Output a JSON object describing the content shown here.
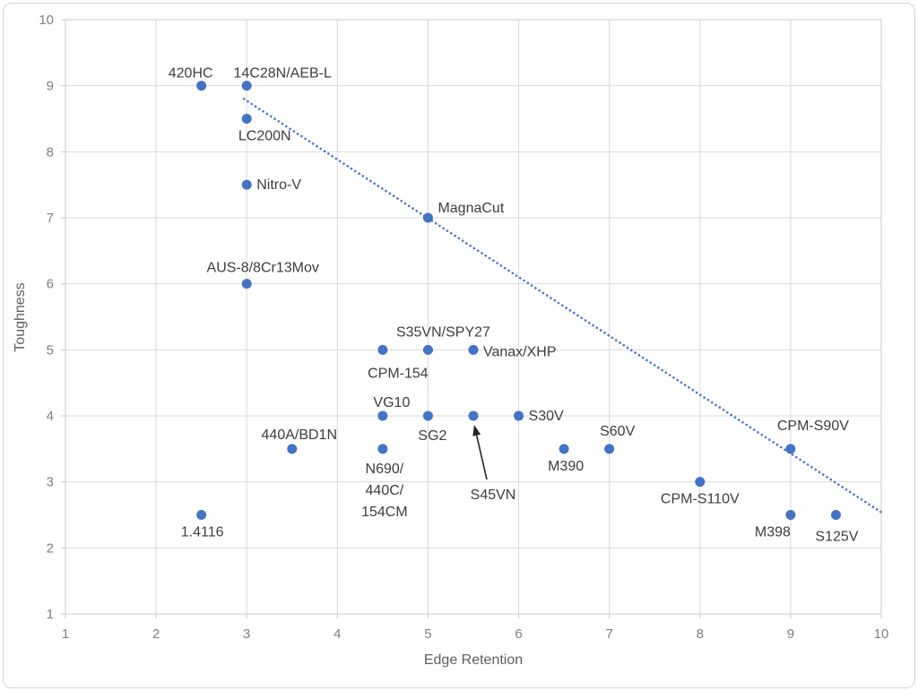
{
  "chart_data": {
    "type": "scatter",
    "title": "",
    "xlabel": "Edge Retention",
    "ylabel": "Toughness",
    "xlim": [
      1,
      10
    ],
    "ylim": [
      1,
      10
    ],
    "xticks": [
      "1",
      "2",
      "3",
      "4",
      "5",
      "6",
      "7",
      "8",
      "9",
      "10"
    ],
    "yticks": [
      "1",
      "2",
      "3",
      "4",
      "5",
      "6",
      "7",
      "8",
      "9",
      "10"
    ],
    "grid": true,
    "legend": false,
    "points": [
      {
        "label": "420HC",
        "x": 2.5,
        "y": 9,
        "placement": "above",
        "offset": [
          -12,
          4
        ]
      },
      {
        "label": "14C28N/AEB-L",
        "x": 3,
        "y": 9,
        "placement": "above",
        "offset": [
          40,
          4
        ]
      },
      {
        "label": "LC200N",
        "x": 3,
        "y": 8.5,
        "placement": "below",
        "offset": [
          20,
          0
        ]
      },
      {
        "label": "Nitro-V",
        "x": 3,
        "y": 7.5,
        "placement": "right",
        "offset": [
          0,
          0
        ]
      },
      {
        "label": "MagnaCut",
        "x": 5,
        "y": 7,
        "placement": "above-right",
        "offset": [
          0,
          0
        ]
      },
      {
        "label": "AUS-8/8Cr13Mov",
        "x": 3,
        "y": 6,
        "placement": "above",
        "offset": [
          18,
          0
        ]
      },
      {
        "label": "CPM-154",
        "x": 4.5,
        "y": 5,
        "placement": "below",
        "offset": [
          17,
          7
        ]
      },
      {
        "label": "S35VN/SPY27",
        "x": 5,
        "y": 5,
        "placement": "above",
        "offset": [
          17,
          -2
        ]
      },
      {
        "label": "Vanax/XHP",
        "x": 5.5,
        "y": 5,
        "placement": "right",
        "offset": [
          0,
          2
        ]
      },
      {
        "label": "VG10",
        "x": 4.5,
        "y": 4,
        "placement": "above",
        "offset": [
          10,
          3
        ]
      },
      {
        "label": "SG2",
        "x": 5,
        "y": 4,
        "placement": "below",
        "offset": [
          5,
          3
        ]
      },
      {
        "label": "S45VN",
        "x": 5.5,
        "y": 4,
        "placement": "below",
        "offset": [
          22,
          69
        ],
        "arrow": {
          "from_offset": [
            15,
            71
          ],
          "to_offset": [
            1,
            10
          ]
        }
      },
      {
        "label": "S30V",
        "x": 6,
        "y": 4,
        "placement": "right",
        "offset": [
          0,
          0
        ]
      },
      {
        "label": "440A/BD1N",
        "x": 3.5,
        "y": 3.5,
        "placement": "above",
        "offset": [
          8,
          2
        ]
      },
      {
        "label": "N690/\n440C/\n154CM",
        "x": 4.5,
        "y": 3.5,
        "placement": "below",
        "offset": [
          2,
          3
        ]
      },
      {
        "label": "M390",
        "x": 6.5,
        "y": 3.5,
        "placement": "below",
        "offset": [
          2,
          0
        ]
      },
      {
        "label": "S60V",
        "x": 7,
        "y": 3.5,
        "placement": "above",
        "offset": [
          9,
          -2
        ]
      },
      {
        "label": "CPM-S90V",
        "x": 9,
        "y": 3.5,
        "placement": "above",
        "offset": [
          25,
          -8
        ]
      },
      {
        "label": "CPM-S110V",
        "x": 8,
        "y": 3,
        "placement": "below",
        "offset": [
          0,
          0
        ]
      },
      {
        "label": "M398",
        "x": 9,
        "y": 2.5,
        "placement": "below",
        "offset": [
          -20,
          0
        ]
      },
      {
        "label": "S125V",
        "x": 9.5,
        "y": 2.5,
        "placement": "below",
        "offset": [
          1,
          5
        ]
      },
      {
        "label": "1.4116",
        "x": 2.5,
        "y": 2.5,
        "placement": "below",
        "offset": [
          1,
          0
        ]
      }
    ],
    "trendline": {
      "type": "linear",
      "style": "dotted",
      "from": {
        "x": 2.97,
        "y": 8.8
      },
      "to": {
        "x": 10.0,
        "y": 2.54
      }
    },
    "colors": {
      "marker": "#4472c4",
      "trendline": "#4a77c9",
      "gridline": "#d9d9d9",
      "plot_border": "#c9c9c9",
      "tick_text": "#7f7f7f",
      "axis_title_text": "#5f5f5f",
      "point_label_text": "#3d3d3d",
      "arrow": "#262626",
      "background": "#ffffff"
    }
  }
}
